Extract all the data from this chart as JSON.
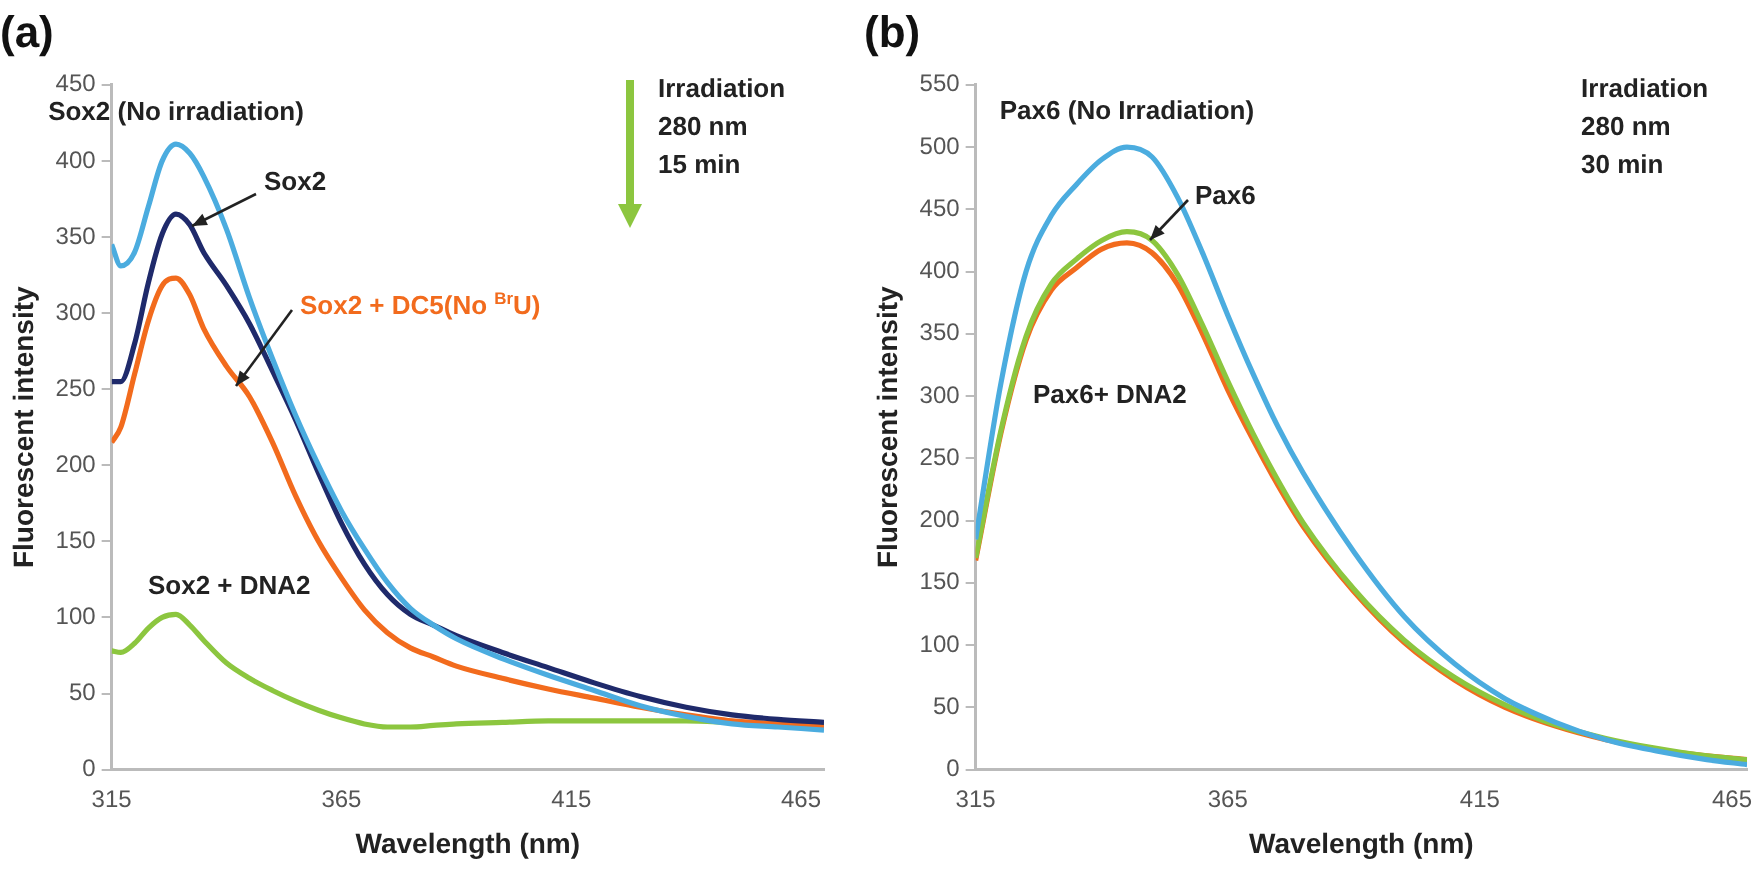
{
  "chart_data": [
    {
      "type": "line",
      "title": "(a)",
      "xlabel": "Wavelength (nm)",
      "ylabel": "Fluorescent intensity",
      "x": [
        315,
        317,
        320,
        323,
        326,
        329,
        332,
        335,
        340,
        345,
        350,
        355,
        360,
        365,
        370,
        375,
        380,
        385,
        390,
        400,
        410,
        420,
        430,
        440,
        450,
        460,
        470
      ],
      "xlim": [
        315,
        470
      ],
      "xticks": [
        315,
        365,
        415,
        465
      ],
      "ylim": [
        0,
        450
      ],
      "yticks": [
        0,
        50,
        100,
        150,
        200,
        250,
        300,
        350,
        400,
        450
      ],
      "grid": false,
      "legend": false,
      "marker": "none",
      "line_style": "solid",
      "annotations": [
        "Irradiation",
        "280 nm",
        "15 min"
      ],
      "series": [
        {
          "name": "Sox2 (No irradiation)",
          "color": "#4bacdf",
          "values": [
            345,
            331,
            340,
            370,
            400,
            411,
            405,
            390,
            355,
            310,
            270,
            233,
            200,
            170,
            145,
            123,
            106,
            95,
            86,
            73,
            62,
            52,
            42,
            35,
            30,
            28,
            26
          ]
        },
        {
          "name": "Sox2",
          "color": "#1f2a6b",
          "values": [
            255,
            255,
            280,
            320,
            352,
            365,
            358,
            340,
            318,
            293,
            262,
            230,
            195,
            162,
            135,
            115,
            102,
            95,
            88,
            77,
            67,
            57,
            48,
            41,
            36,
            33,
            31
          ]
        },
        {
          "name": "Sox2 + DC5(No $^{Br}$U)",
          "color": "#f26b1d",
          "values": [
            215,
            225,
            260,
            295,
            318,
            323,
            312,
            290,
            265,
            245,
            215,
            180,
            150,
            126,
            105,
            90,
            80,
            74,
            68,
            60,
            53,
            47,
            41,
            36,
            32,
            30,
            28
          ]
        },
        {
          "name": "Sox2 + DNA2",
          "color": "#8cc63f",
          "values": [
            78,
            77,
            83,
            93,
            100,
            102,
            95,
            85,
            70,
            60,
            52,
            45,
            39,
            34,
            30,
            28,
            28,
            29,
            30,
            31,
            32,
            32,
            32,
            32,
            31,
            30,
            29
          ]
        }
      ]
    },
    {
      "type": "line",
      "title": "(b)",
      "xlabel": "Wavelength (nm)",
      "ylabel": "Fluorescent intensity",
      "x": [
        315,
        320,
        325,
        330,
        335,
        340,
        345,
        350,
        355,
        360,
        365,
        370,
        375,
        380,
        390,
        400,
        410,
        420,
        430,
        440,
        450,
        460,
        468
      ],
      "xlim": [
        315,
        468
      ],
      "xticks": [
        315,
        365,
        415,
        465
      ],
      "ylim": [
        0,
        550
      ],
      "yticks": [
        0,
        50,
        100,
        150,
        200,
        250,
        300,
        350,
        400,
        450,
        500,
        550
      ],
      "grid": false,
      "legend": false,
      "marker": "none",
      "line_style": "solid",
      "annotations": [
        "Irradiation",
        "280 nm",
        "30 min"
      ],
      "series": [
        {
          "name": "Pax6 (No Irradiation)",
          "color": "#4bacdf",
          "values": [
            185,
            310,
            400,
            445,
            470,
            490,
            500,
            492,
            460,
            415,
            365,
            318,
            275,
            238,
            175,
            123,
            85,
            57,
            38,
            24,
            15,
            8,
            4
          ]
        },
        {
          "name": "Pax6",
          "color": "#8cc63f",
          "values": [
            170,
            272,
            348,
            390,
            410,
            425,
            432,
            425,
            398,
            357,
            312,
            270,
            232,
            198,
            145,
            104,
            74,
            52,
            36,
            25,
            17,
            11,
            8
          ]
        },
        {
          "name": "Pax6+ DNA2",
          "color": "#f26b1d",
          "values": [
            168,
            270,
            345,
            385,
            403,
            418,
            423,
            415,
            390,
            350,
            305,
            265,
            228,
            195,
            143,
            102,
            72,
            50,
            35,
            24,
            16,
            11,
            8
          ]
        }
      ]
    }
  ]
}
